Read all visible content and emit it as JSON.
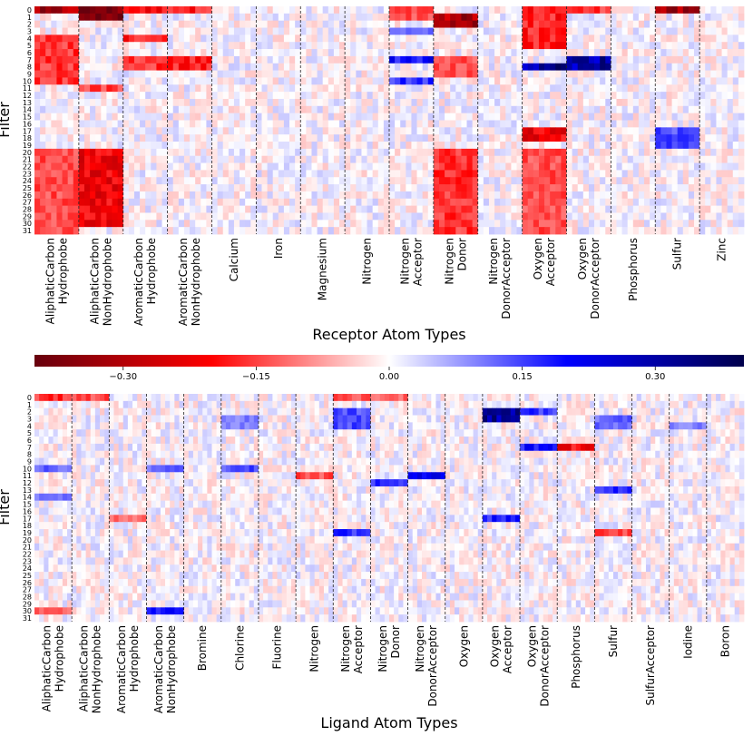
{
  "colors": {
    "neg_max": "#67000d",
    "neg": "#ff0000",
    "zero": "#ffffff",
    "pos": "#0000ff",
    "pos_max": "#00004c"
  },
  "chart_data": [
    {
      "type": "heatmap",
      "panel": "top",
      "xlabel": "Receptor Atom Types",
      "ylabel": "Filter",
      "filters": [
        "0",
        "1",
        "2",
        "3",
        "4",
        "5",
        "6",
        "7",
        "8",
        "9",
        "10",
        "11",
        "12",
        "13",
        "14",
        "15",
        "16",
        "17",
        "18",
        "19",
        "20",
        "21",
        "22",
        "23",
        "24",
        "25",
        "26",
        "27",
        "28",
        "29",
        "30",
        "31"
      ],
      "categories": [
        [
          "AliphaticCarbon",
          "Hydrophobe"
        ],
        [
          "AliphaticCarbon",
          "NonHydrophobe"
        ],
        [
          "AromaticCarbon",
          "Hydrophobe"
        ],
        [
          "AromaticCarbon",
          "NonHydrophobe"
        ],
        [
          "Calcium"
        ],
        [
          "Iron"
        ],
        [
          "Magnesium"
        ],
        [
          "Nitrogen"
        ],
        [
          "Nitrogen",
          "Acceptor"
        ],
        [
          "Nitrogen",
          "Donor"
        ],
        [
          "Nitrogen",
          "DonorAcceptor"
        ],
        [
          "Oxygen",
          "Acceptor"
        ],
        [
          "Oxygen",
          "DonorAcceptor"
        ],
        [
          "Phosphorus"
        ],
        [
          "Sulfur"
        ],
        [
          "Zinc"
        ]
      ],
      "value_range": [
        -0.4,
        0.4
      ],
      "strong_blocks": [
        {
          "category": 0,
          "filters": [
            0,
            0
          ],
          "value": -0.3
        },
        {
          "category": 1,
          "filters": [
            0,
            1
          ],
          "value": -0.38
        },
        {
          "category": 2,
          "filters": [
            0,
            0
          ],
          "value": -0.2
        },
        {
          "category": 3,
          "filters": [
            0,
            0
          ],
          "value": -0.18
        },
        {
          "category": 0,
          "filters": [
            4,
            10
          ],
          "value": -0.16
        },
        {
          "category": 2,
          "filters": [
            4,
            4
          ],
          "value": -0.18
        },
        {
          "category": 2,
          "filters": [
            7,
            8
          ],
          "value": -0.16
        },
        {
          "category": 3,
          "filters": [
            7,
            8
          ],
          "value": -0.18
        },
        {
          "category": 1,
          "filters": [
            11,
            11
          ],
          "value": -0.15
        },
        {
          "category": 8,
          "filters": [
            0,
            1
          ],
          "value": -0.14
        },
        {
          "category": 8,
          "filters": [
            3,
            3
          ],
          "value": 0.12
        },
        {
          "category": 8,
          "filters": [
            7,
            7
          ],
          "value": 0.2
        },
        {
          "category": 8,
          "filters": [
            10,
            10
          ],
          "value": 0.16
        },
        {
          "category": 9,
          "filters": [
            1,
            2
          ],
          "value": -0.3
        },
        {
          "category": 9,
          "filters": [
            7,
            9
          ],
          "value": -0.14
        },
        {
          "category": 11,
          "filters": [
            0,
            5
          ],
          "value": -0.18
        },
        {
          "category": 11,
          "filters": [
            8,
            8
          ],
          "value": 0.32
        },
        {
          "category": 11,
          "filters": [
            17,
            18
          ],
          "value": -0.22
        },
        {
          "category": 12,
          "filters": [
            0,
            0
          ],
          "value": -0.16
        },
        {
          "category": 12,
          "filters": [
            7,
            8
          ],
          "value": 0.3
        },
        {
          "category": 14,
          "filters": [
            0,
            0
          ],
          "value": -0.3
        },
        {
          "category": 14,
          "filters": [
            17,
            19
          ],
          "value": 0.14
        },
        {
          "category": 0,
          "filters": [
            20,
            31
          ],
          "value": -0.14
        },
        {
          "category": 1,
          "filters": [
            20,
            30
          ],
          "value": -0.22
        },
        {
          "category": 9,
          "filters": [
            20,
            31
          ],
          "value": -0.16
        },
        {
          "category": 11,
          "filters": [
            20,
            31
          ],
          "value": -0.14
        }
      ]
    },
    {
      "type": "heatmap",
      "panel": "bottom",
      "xlabel": "Ligand Atom Types",
      "ylabel": "Filter",
      "filters": [
        "0",
        "1",
        "2",
        "3",
        "4",
        "5",
        "6",
        "7",
        "8",
        "9",
        "10",
        "11",
        "12",
        "13",
        "14",
        "15",
        "16",
        "17",
        "18",
        "19",
        "20",
        "21",
        "22",
        "23",
        "24",
        "25",
        "26",
        "27",
        "28",
        "29",
        "30",
        "31"
      ],
      "categories": [
        [
          "AliphaticCarbon",
          "Hydrophobe"
        ],
        [
          "AliphaticCarbon",
          "NonHydrophobe"
        ],
        [
          "AromaticCarbon",
          "Hydrophobe"
        ],
        [
          "AromaticCarbon",
          "NonHydrophobe"
        ],
        [
          "Bromine"
        ],
        [
          "Chlorine"
        ],
        [
          "Fluorine"
        ],
        [
          "Nitrogen"
        ],
        [
          "Nitrogen",
          "Acceptor"
        ],
        [
          "Nitrogen",
          "Donor"
        ],
        [
          "Nitrogen",
          "DonorAcceptor"
        ],
        [
          "Oxygen"
        ],
        [
          "Oxygen",
          "Acceptor"
        ],
        [
          "Oxygen",
          "DonorAcceptor"
        ],
        [
          "Phosphorus"
        ],
        [
          "Sulfur"
        ],
        [
          "SulfurAcceptor"
        ],
        [
          "Iodine"
        ],
        [
          "Boron"
        ]
      ],
      "value_range": [
        -0.4,
        0.4
      ],
      "strong_blocks": [
        {
          "category": 0,
          "filters": [
            0,
            0
          ],
          "value": -0.16
        },
        {
          "category": 1,
          "filters": [
            0,
            0
          ],
          "value": -0.14
        },
        {
          "category": 8,
          "filters": [
            0,
            0
          ],
          "value": -0.14
        },
        {
          "category": 9,
          "filters": [
            0,
            0
          ],
          "value": -0.12
        },
        {
          "category": 8,
          "filters": [
            2,
            4
          ],
          "value": 0.14
        },
        {
          "category": 12,
          "filters": [
            2,
            3
          ],
          "value": 0.3
        },
        {
          "category": 13,
          "filters": [
            2,
            2
          ],
          "value": 0.16
        },
        {
          "category": 5,
          "filters": [
            3,
            4
          ],
          "value": 0.1
        },
        {
          "category": 15,
          "filters": [
            3,
            4
          ],
          "value": 0.12
        },
        {
          "category": 17,
          "filters": [
            4,
            4
          ],
          "value": 0.1
        },
        {
          "category": 13,
          "filters": [
            7,
            7
          ],
          "value": 0.18
        },
        {
          "category": 14,
          "filters": [
            7,
            7
          ],
          "value": -0.2
        },
        {
          "category": 0,
          "filters": [
            10,
            10
          ],
          "value": 0.12
        },
        {
          "category": 3,
          "filters": [
            10,
            10
          ],
          "value": 0.12
        },
        {
          "category": 5,
          "filters": [
            10,
            10
          ],
          "value": 0.14
        },
        {
          "category": 7,
          "filters": [
            11,
            11
          ],
          "value": -0.14
        },
        {
          "category": 10,
          "filters": [
            11,
            11
          ],
          "value": 0.24
        },
        {
          "category": 9,
          "filters": [
            12,
            12
          ],
          "value": 0.18
        },
        {
          "category": 15,
          "filters": [
            13,
            13
          ],
          "value": 0.16
        },
        {
          "category": 0,
          "filters": [
            14,
            14
          ],
          "value": 0.12
        },
        {
          "category": 2,
          "filters": [
            17,
            17
          ],
          "value": -0.12
        },
        {
          "category": 12,
          "filters": [
            17,
            17
          ],
          "value": 0.18
        },
        {
          "category": 8,
          "filters": [
            19,
            19
          ],
          "value": 0.16
        },
        {
          "category": 15,
          "filters": [
            19,
            19
          ],
          "value": -0.14
        },
        {
          "category": 3,
          "filters": [
            30,
            30
          ],
          "value": 0.18
        },
        {
          "category": 0,
          "filters": [
            30,
            30
          ],
          "value": -0.12
        }
      ]
    }
  ],
  "colorbar": {
    "ticks": [
      -0.3,
      -0.15,
      0.0,
      0.15,
      0.3
    ],
    "tick_labels": [
      "−0.30",
      "−0.15",
      "0.00",
      "0.15",
      "0.30"
    ],
    "range": [
      -0.4,
      0.4
    ]
  }
}
